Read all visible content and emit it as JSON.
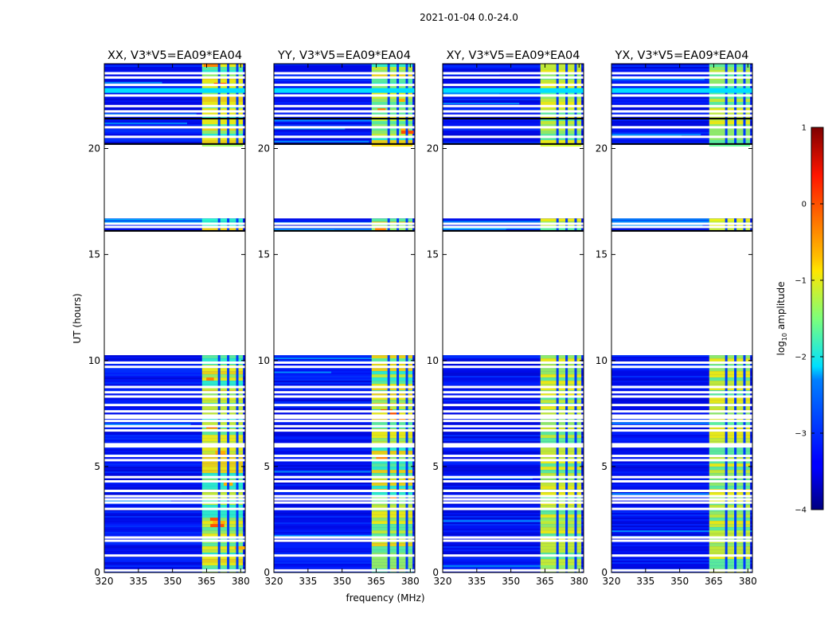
{
  "chart_data": {
    "type": "heatmap",
    "title": "2021-01-04 0.0-24.0",
    "xlabel": "frequency (MHz)",
    "ylabel": "UT (hours)",
    "xlim": [
      320,
      382
    ],
    "ylim": [
      0,
      24
    ],
    "xticks": [
      320,
      335,
      350,
      365,
      380
    ],
    "yticks": [
      0,
      5,
      10,
      15,
      20
    ],
    "panels": [
      {
        "name": "XX",
        "title": "XX, V3*V5=EA09*EA04"
      },
      {
        "name": "YY",
        "title": "YY, V3*V5=EA09*EA04"
      },
      {
        "name": "XY",
        "title": "XY, V3*V5=EA09*EA04"
      },
      {
        "name": "YX",
        "title": "YX, V3*V5=EA09*EA04"
      }
    ],
    "data_segments_hours": [
      [
        0,
        10.25
      ],
      [
        16.1,
        16.7
      ],
      [
        20.2,
        24
      ]
    ],
    "flagged_rows_hours": [
      0.1,
      0.8,
      1.5,
      1.65,
      3.0,
      3.3,
      3.45,
      3.6,
      3.85,
      4.3,
      4.5,
      5.3,
      5.5,
      5.95,
      6.05,
      6.7,
      6.9,
      7.15,
      7.3,
      7.4,
      7.6,
      7.9,
      8.3,
      8.5,
      8.75,
      9.7,
      9.9,
      16.3,
      16.45,
      20.55,
      21.0,
      21.55,
      21.75,
      22.0,
      22.5,
      22.7,
      23.0,
      23.35,
      23.55
    ],
    "signal_band_mhz": [
      363,
      381
    ],
    "signal_gaps_mhz": [
      370.5,
      374.5,
      378.5
    ],
    "colorbar": {
      "label": "log10 amplitude",
      "ticks": [
        "1",
        "0",
        "−1",
        "−2",
        "−3",
        "−4"
      ],
      "range": [
        -4,
        1
      ],
      "colormap": "jet"
    }
  }
}
